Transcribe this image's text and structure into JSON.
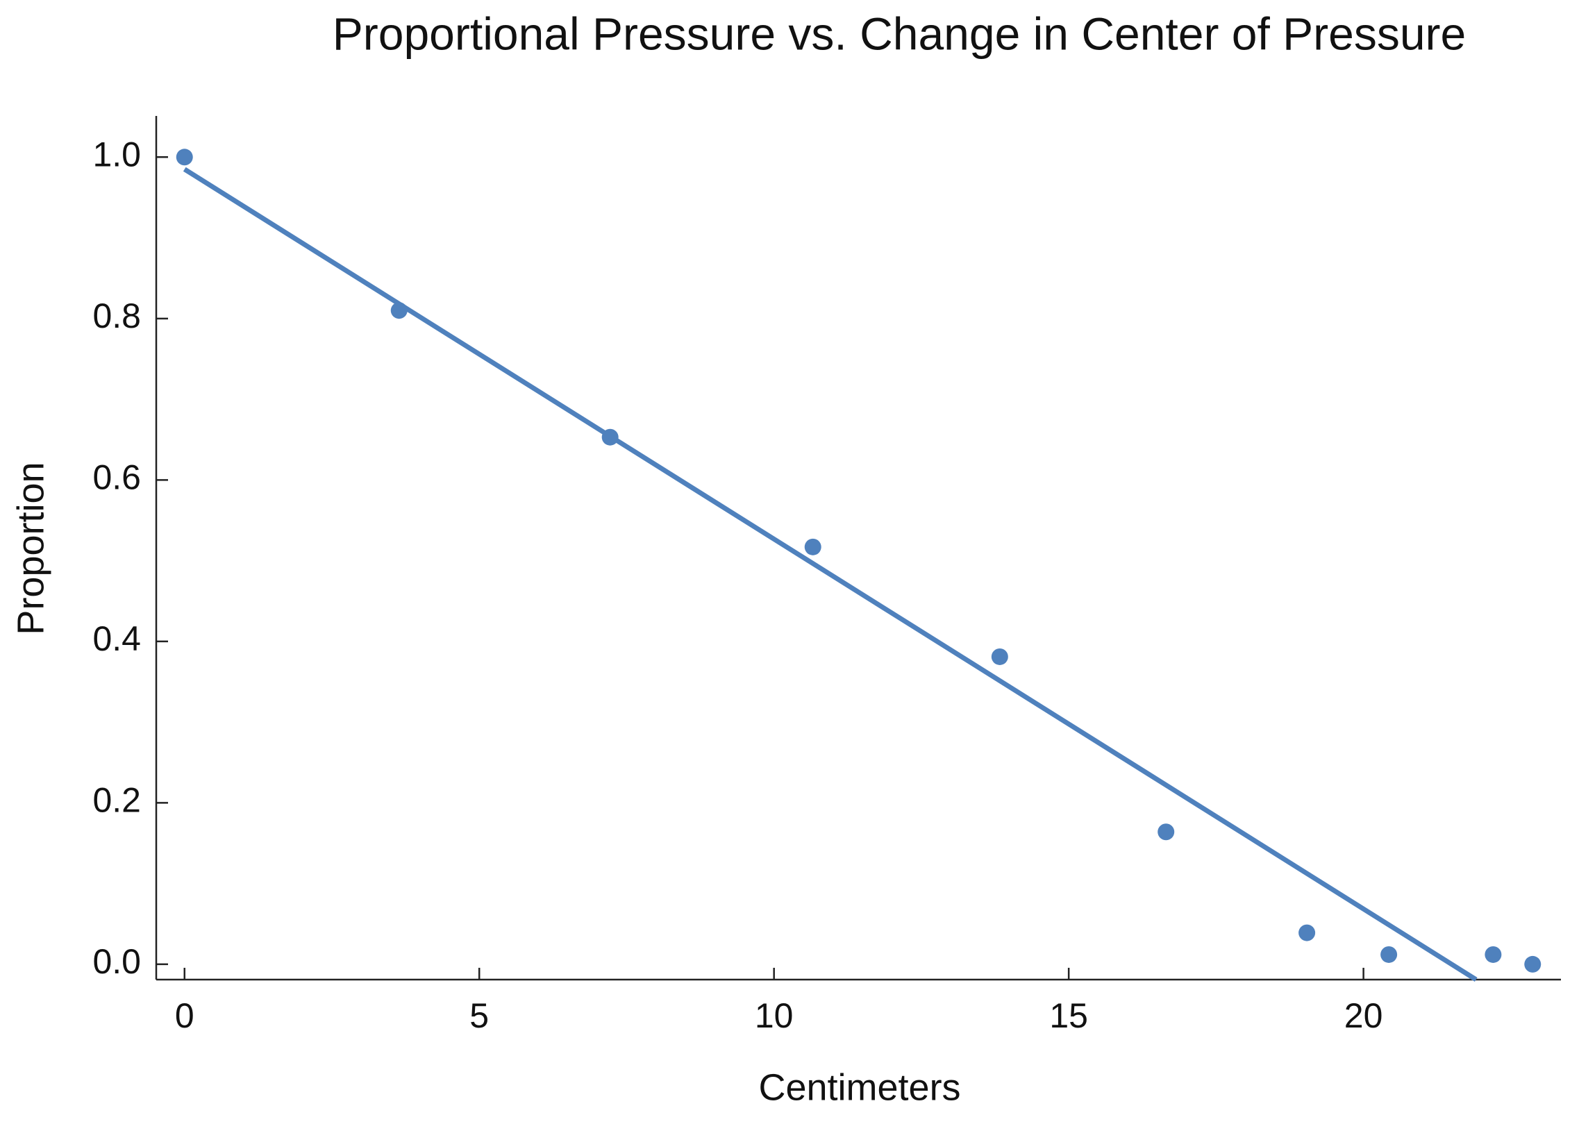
{
  "chart_data": {
    "type": "scatter",
    "title": "Proportional Pressure vs. Change in Center of Pressure",
    "x_label": "Centimeters",
    "y_label": "Proportion",
    "series": [
      {
        "mode": "markers",
        "color": "#4f81bd",
        "x": [
          0,
          3.64,
          7.22,
          10.66,
          13.83,
          16.65,
          19.04,
          20.43,
          22.2,
          22.87
        ],
        "values": [
          1.0,
          0.81,
          0.653,
          0.517,
          0.381,
          0.164,
          0.039,
          0.012,
          0.012,
          0.0
        ]
      },
      {
        "mode": "line",
        "color": "#4f81bd",
        "x": [
          0,
          21.91
        ],
        "values": [
          0.985,
          -0.019
        ]
      }
    ],
    "xlim": [
      -0.48,
      23.35
    ],
    "ylim": [
      -0.019,
      1.051
    ],
    "xticks": [
      0,
      5,
      10,
      15,
      20
    ],
    "yticks": [
      {
        "value": 0,
        "label": "0.0"
      },
      0.2,
      0.4,
      0.6,
      0.8,
      {
        "value": 1,
        "label": "1.0"
      }
    ],
    "grid": false
  }
}
